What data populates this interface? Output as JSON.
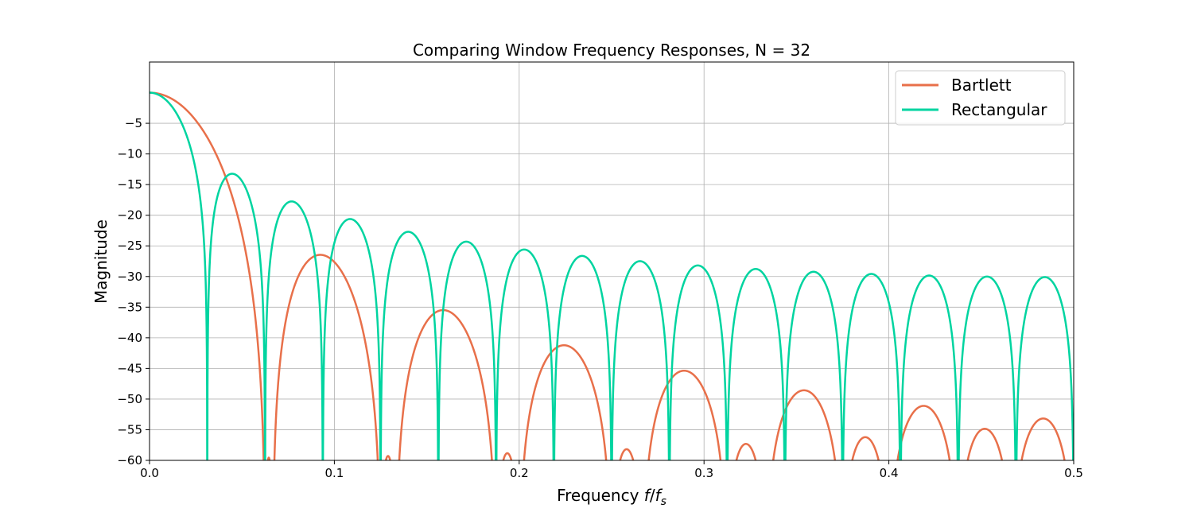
{
  "chart_data": {
    "type": "line",
    "title": "Comparing Window Frequency Responses, N = 32",
    "xlabel": "Frequency f/f_s",
    "xlabel_parts": {
      "prefix": "Frequency ",
      "f": "f",
      "slash": "/",
      "fs": "f",
      "sub": "s"
    },
    "ylabel": "Magnitude",
    "N": 32,
    "xlim": [
      0,
      0.5
    ],
    "ylim": [
      -60,
      5
    ],
    "xticks": [
      0.0,
      0.1,
      0.2,
      0.3,
      0.4,
      0.5
    ],
    "xtick_labels": [
      "0.0",
      "0.1",
      "0.2",
      "0.3",
      "0.4",
      "0.5"
    ],
    "yticks": [
      -5,
      -10,
      -15,
      -20,
      -25,
      -30,
      -35,
      -40,
      -45,
      -50,
      -55,
      -60
    ],
    "ytick_labels": [
      "−5",
      "−10",
      "−15",
      "−20",
      "−25",
      "−30",
      "−35",
      "−40",
      "−45",
      "−50",
      "−55",
      "−60"
    ],
    "grid": true,
    "legend_position": "top-right",
    "series": [
      {
        "name": "Bartlett",
        "window": "bartlett",
        "color": "#e8704a",
        "sidelobe_peaks_db": [
          -26.4,
          -35.4,
          -41.2,
          -45.3,
          -48.6,
          -51.1,
          -53.2,
          -54.8
        ]
      },
      {
        "name": "Rectangular",
        "window": "rectangular",
        "color": "#00d4a0",
        "sidelobe_peaks_db": [
          -13.3,
          -17.8,
          -20.6,
          -22.7,
          -24.3,
          -25.6,
          -26.6,
          -27.5,
          -28.2,
          -28.8,
          -29.3,
          -29.6,
          -29.9,
          -30.0,
          -30.1
        ]
      }
    ]
  }
}
